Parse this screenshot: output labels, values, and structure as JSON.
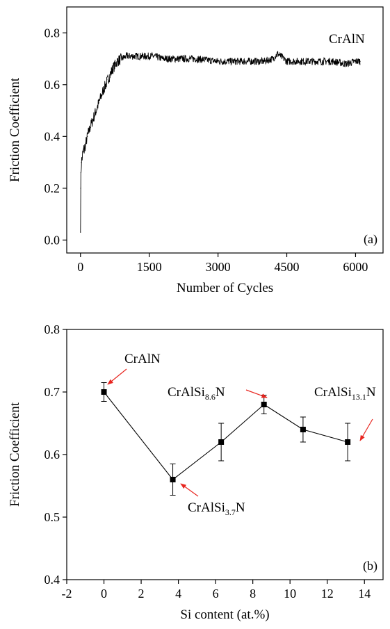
{
  "chart_data": [
    {
      "type": "line",
      "panel_label": "(a)",
      "xlabel": "Number of Cycles",
      "ylabel": "Friction Coefficient",
      "xlim": [
        -300,
        6600
      ],
      "ylim": [
        -0.05,
        0.9
      ],
      "xticks": [
        0,
        1500,
        3000,
        4500,
        6000
      ],
      "xtick_labels": [
        "0",
        "1500",
        "3000",
        "4500",
        "6000"
      ],
      "yticks": [
        0.0,
        0.2,
        0.4,
        0.6,
        0.8
      ],
      "ytick_labels": [
        "0.0",
        "0.2",
        "0.4",
        "0.6",
        "0.8"
      ],
      "series": [
        {
          "name": "CrAlN",
          "color": "#000000",
          "x": [
            0,
            5,
            10,
            20,
            40,
            60,
            100,
            150,
            200,
            300,
            400,
            500,
            600,
            700,
            800,
            900,
            1000,
            1100,
            1200,
            1400,
            1600,
            1800,
            2000,
            2500,
            3000,
            3500,
            4000,
            4200,
            4300,
            4500,
            5000,
            5500,
            5800,
            6000,
            6100
          ],
          "y": [
            0.03,
            0.2,
            0.26,
            0.3,
            0.32,
            0.34,
            0.36,
            0.4,
            0.43,
            0.48,
            0.53,
            0.58,
            0.62,
            0.66,
            0.69,
            0.7,
            0.71,
            0.71,
            0.71,
            0.71,
            0.71,
            0.7,
            0.7,
            0.7,
            0.69,
            0.69,
            0.69,
            0.7,
            0.72,
            0.69,
            0.69,
            0.69,
            0.68,
            0.69,
            0.69
          ]
        }
      ],
      "annotations": [
        {
          "text": "CrAlN"
        }
      ]
    },
    {
      "type": "line",
      "panel_label": "(b)",
      "xlabel": "Si content (at.%)",
      "ylabel": "Friction Coefficient",
      "xlim": [
        -2,
        15
      ],
      "ylim": [
        0.4,
        0.8
      ],
      "xticks": [
        -2,
        0,
        2,
        4,
        6,
        8,
        10,
        12,
        14
      ],
      "xtick_labels": [
        "-2",
        "0",
        "2",
        "4",
        "6",
        "8",
        "10",
        "12",
        "14"
      ],
      "yticks": [
        0.4,
        0.5,
        0.6,
        0.7,
        0.8
      ],
      "ytick_labels": [
        "0.4",
        "0.5",
        "0.6",
        "0.7",
        "0.8"
      ],
      "series": [
        {
          "color": "#000000",
          "x": [
            0,
            3.7,
            6.3,
            8.6,
            10.7,
            13.1
          ],
          "y": [
            0.7,
            0.56,
            0.62,
            0.68,
            0.64,
            0.62
          ],
          "error": [
            0.015,
            0.025,
            0.03,
            0.015,
            0.02,
            0.03
          ]
        }
      ],
      "annotations": [
        {
          "main": "CrAlN",
          "sub": "",
          "tail": ""
        },
        {
          "main": "CrAlSi",
          "sub": "3.7",
          "tail": "N"
        },
        {
          "main": "CrAlSi",
          "sub": "8.6",
          "tail": "N"
        },
        {
          "main": "CrAlSi",
          "sub": "13.1",
          "tail": "N"
        }
      ],
      "arrow_color": "#e8251f"
    }
  ]
}
